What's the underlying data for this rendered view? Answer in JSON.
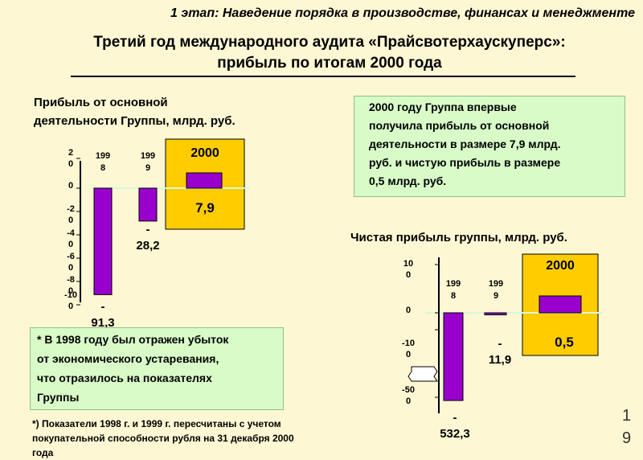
{
  "header": {
    "stage": "1 этап: Наведение порядка в производстве, финансах и менеджменте",
    "title_line1": "Третий год международного аудита «Прайсвотерхаускуперс»:",
    "title_line2": "прибыль по итогам 2000 года"
  },
  "colors": {
    "background": "#fdf7d3",
    "bar": "#9900cc",
    "highlight_box": "#ffcc00",
    "info_box": "#d8fbc8",
    "zero_line": "#d8f8d8"
  },
  "chart1_title_line1": "Прибыль от основной",
  "chart1_title_line2": "деятельности Группы, млрд. руб.",
  "chart2_title": "Чистая прибыль группы, млрд. руб.",
  "note_2000": {
    "lines": [
      "2000 году Группа впервые",
      "получила прибыль от основной",
      "деятельности в размере 7,9 млрд.",
      "руб. и чистую прибыль в размере",
      "0,5 млрд. руб."
    ]
  },
  "note_1998": {
    "lines": [
      "* В 1998 году был отражен убыток",
      "от экономического устаревания,",
      "что отразилось на показателях",
      "Группы"
    ]
  },
  "footnote": {
    "lines": [
      "*) Показатели 1998 г. и 1999 г. пересчитаны с учетом",
      "покупательной способности рубля на 31 декабря 2000",
      "года"
    ]
  },
  "page_number": {
    "digit1": "1",
    "digit2": "9"
  },
  "chart_data": [
    {
      "type": "bar",
      "ylim": [
        -100,
        20
      ],
      "ticks": [
        20,
        0,
        -20,
        -40,
        -60,
        -80,
        -100
      ],
      "tick_labels": [
        [
          "2",
          "0"
        ],
        [
          "0"
        ],
        [
          "-2",
          "0"
        ],
        [
          "-4",
          "0"
        ],
        [
          "-6",
          "0"
        ],
        [
          "-8",
          "0"
        ],
        [
          "-10",
          "0"
        ]
      ],
      "categories": [
        [
          "199",
          "8"
        ],
        [
          "199",
          "9"
        ],
        [
          "2000"
        ]
      ],
      "values": [
        -91.3,
        -28.2,
        7.9
      ],
      "value_labels": [
        [
          "-",
          "91,3"
        ],
        [
          "-",
          "28,2"
        ],
        [
          "7,9"
        ]
      ],
      "highlight_category": 2
    },
    {
      "type": "bar",
      "ylim": [
        -500,
        100
      ],
      "ticks": [
        100,
        0,
        -100,
        -500
      ],
      "tick_labels": [
        [
          "10",
          "0"
        ],
        [
          "0"
        ],
        [
          "-10",
          "0"
        ],
        [
          "-50",
          "0"
        ]
      ],
      "categories": [
        [
          "199",
          "8"
        ],
        [
          "199",
          "9"
        ],
        [
          "2000"
        ]
      ],
      "values": [
        -532.3,
        -11.9,
        0.5
      ],
      "value_labels": [
        [
          "-",
          "532,3"
        ],
        [
          "-",
          "11,9"
        ],
        [
          "0,5"
        ]
      ],
      "highlight_category": 2,
      "axis_break": true
    }
  ]
}
